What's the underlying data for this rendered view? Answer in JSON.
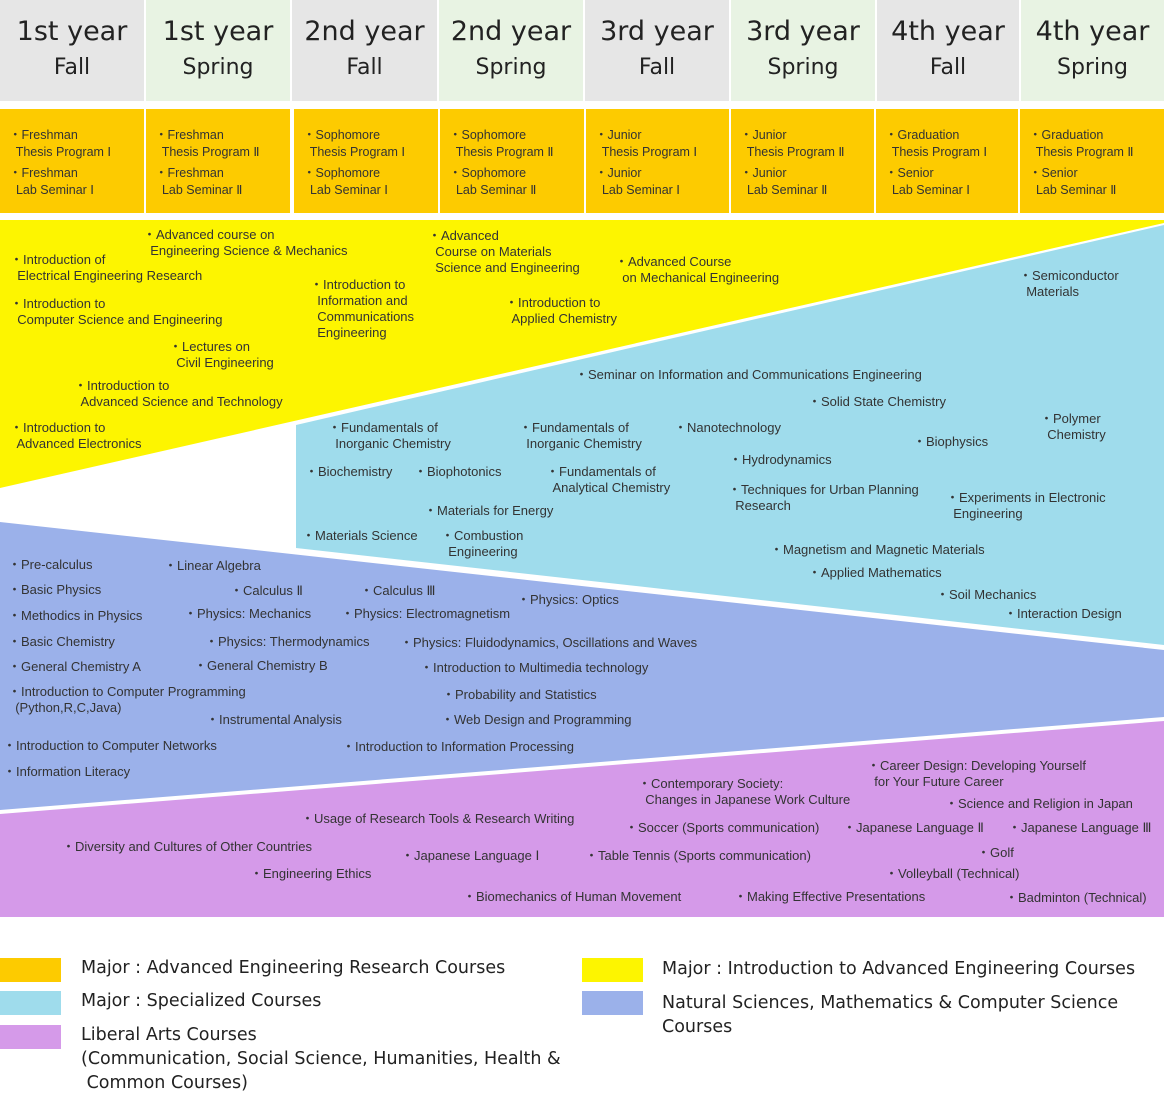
{
  "semesters": [
    {
      "year": "1st year",
      "term": "Fall"
    },
    {
      "year": "1st year",
      "term": "Spring"
    },
    {
      "year": "2nd year",
      "term": "Fall"
    },
    {
      "year": "2nd year",
      "term": "Spring"
    },
    {
      "year": "3rd year",
      "term": "Fall"
    },
    {
      "year": "3rd year",
      "term": "Spring"
    },
    {
      "year": "4th year",
      "term": "Fall"
    },
    {
      "year": "4th year",
      "term": "Spring"
    }
  ],
  "advanced_research": [
    {
      "line1": "・Freshman",
      "line2": "  Thesis Program Ⅰ",
      "line3": "・Freshman",
      "line4": "  Lab Seminar Ⅰ"
    },
    {
      "line1": "・Freshman",
      "line2": "  Thesis Program Ⅱ",
      "line3": "・Freshman",
      "line4": "  Lab Seminar Ⅱ"
    },
    {
      "line1": "・Sophomore",
      "line2": "  Thesis Program Ⅰ",
      "line3": "・Sophomore",
      "line4": "  Lab Seminar Ⅰ"
    },
    {
      "line1": "・Sophomore",
      "line2": "  Thesis Program Ⅱ",
      "line3": "・Sophomore",
      "line4": "  Lab Seminar Ⅱ"
    },
    {
      "line1": "・Junior",
      "line2": "  Thesis Program Ⅰ",
      "line3": "・Junior",
      "line4": "  Lab Seminar Ⅰ"
    },
    {
      "line1": "・Junior",
      "line2": "  Thesis Program Ⅱ",
      "line3": "・Junior",
      "line4": "  Lab Seminar Ⅱ"
    },
    {
      "line1": "・Graduation",
      "line2": "  Thesis Program Ⅰ",
      "line3": "・Senior",
      "line4": "  Lab Seminar Ⅰ"
    },
    {
      "line1": "・Graduation",
      "line2": "  Thesis Program Ⅱ",
      "line3": "・Senior",
      "line4": "  Lab Seminar Ⅱ"
    }
  ],
  "intro_courses": [
    "・Introduction of\n  Electrical Engineering Research",
    "・Introduction to\n  Computer Science and Engineering",
    "・Advanced course on\n  Engineering Science & Mechanics",
    "・Introduction to\n  Information and\n  Communications\n  Engineering",
    "・Lectures on\n  Civil Engineering",
    "・Introduction to\n  Advanced Science and Technology",
    "・Introduction to\n  Advanced Electronics",
    "・Advanced\n  Course on Materials\n  Science and Engineering",
    "・Introduction to\n  Applied Chemistry",
    "・Advanced Course\n  on Mechanical Engineering"
  ],
  "specialized_courses": [
    "・Semiconductor\n  Materials",
    "・Seminar on Information and Communications Engineering",
    "・Solid State Chemistry",
    "・Polymer\n  Chemistry",
    "・Fundamentals of\n  Inorganic Chemistry",
    "・Fundamentals of\n  Inorganic Chemistry",
    "・Nanotechnology",
    "・Biophysics",
    "・Biochemistry",
    "・Biophotonics",
    "・Fundamentals of\n  Analytical Chemistry",
    "・Hydrodynamics",
    "・Techniques for Urban Planning\n  Research",
    "・Experiments in Electronic\n  Engineering",
    "・Materials for Energy",
    "・Materials Science",
    "・Combustion\n  Engineering",
    "・Magnetism and Magnetic Materials",
    "・Applied  Mathematics",
    "・Soil Mechanics",
    "・Interaction Design"
  ],
  "natural_science_courses": [
    "・Pre-calculus",
    "・Linear Algebra",
    "・Basic Physics",
    "・Calculus Ⅱ",
    "・Calculus Ⅲ",
    "・Physics: Optics",
    "・Methodics in Physics",
    "・Physics: Mechanics",
    "・Physics: Electromagnetism",
    "・Basic Chemistry",
    "・Physics: Thermodynamics",
    "・Physics: Fluidodynamics, Oscillations and Waves",
    "・General Chemistry A",
    "・General Chemistry B",
    "・Introduction to Multimedia technology",
    "・Introduction to Computer Programming\n  (Python,R,C,Java)",
    "・Probability and Statistics",
    "・Instrumental  Analysis",
    "・Web Design and Programming",
    "・Introduction to Computer Networks",
    "・Introduction to Information Processing",
    "・Information Literacy"
  ],
  "liberal_arts_courses": [
    "・Career Design: Developing Yourself\n  for Your Future Career",
    "・Contemporary Society:\n  Changes in Japanese Work Culture",
    "・Science and Religion in Japan",
    "・Usage of Research Tools & Research Writing",
    "・Soccer (Sports communication)",
    "・Japanese Language Ⅱ",
    "・Japanese Language Ⅲ",
    "・Diversity and Cultures of Other Countries",
    "・Japanese Language Ⅰ",
    "・Table Tennis (Sports communication)",
    "・Golf",
    "・Engineering Ethics",
    "・Volleyball (Technical)",
    "・Biomechanics of Human Movement",
    "・Making Effective Presentations",
    "・Badminton (Technical)"
  ],
  "colors": {
    "advanced_research": "#fdcb00",
    "intro": "#fdf500",
    "specialized": "#9fdcec",
    "natural_sciences": "#9bb1ea",
    "liberal_arts": "#d59ae9",
    "header_fall": "#e6e6e6",
    "header_spring": "#e8f3e3"
  },
  "legend": [
    {
      "label": "Major : Advanced Engineering Research Courses",
      "color": "#fdcb00"
    },
    {
      "label": "Major : Introduction to Advanced Engineering Courses",
      "color": "#fdf500"
    },
    {
      "label": "Major : Specialized Courses",
      "color": "#9fdcec"
    },
    {
      "label": "Natural Sciences, Mathematics & Computer Science\nCourses",
      "color": "#9bb1ea"
    },
    {
      "label": "Liberal Arts Courses\n(Communication, Social Science, Humanities, Health &\n Common Courses)",
      "color": "#d59ae9"
    }
  ]
}
